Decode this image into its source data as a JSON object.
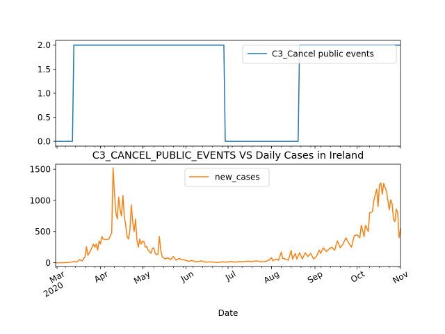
{
  "chart_data": [
    {
      "type": "line",
      "title": "",
      "xlabel": "",
      "ylabel": "",
      "ylim": [
        -0.1,
        2.1
      ],
      "y_ticks": [
        "0.0",
        "0.5",
        "1.0",
        "1.5",
        "2.0"
      ],
      "y_tick_values": [
        0,
        0.5,
        1.0,
        1.5,
        2.0
      ],
      "legend_position": "top-right",
      "series": [
        {
          "name": "C3_Cancel public events",
          "color": "#1f77b4",
          "points": [
            [
              "2020-02-29",
              0
            ],
            [
              "2020-03-12",
              0
            ],
            [
              "2020-03-13",
              2
            ],
            [
              "2020-06-28",
              2
            ],
            [
              "2020-06-29",
              0
            ],
            [
              "2020-08-20",
              0
            ],
            [
              "2020-08-21",
              2
            ],
            [
              "2020-11-01",
              2
            ]
          ]
        }
      ]
    },
    {
      "type": "line",
      "title": "C3_CANCEL_PUBLIC_EVENTS VS Daily Cases in Ireland",
      "xlabel": "Date",
      "ylabel": "",
      "ylim": [
        -60,
        1580
      ],
      "y_ticks": [
        "0",
        "500",
        "1000",
        "1500"
      ],
      "y_tick_values": [
        0,
        500,
        1000,
        1500
      ],
      "x_ticks": [
        {
          "date": "2020-03-01",
          "label": "Mar",
          "sublabel": "2020"
        },
        {
          "date": "2020-04-01",
          "label": "Apr"
        },
        {
          "date": "2020-05-01",
          "label": "May"
        },
        {
          "date": "2020-06-01",
          "label": "Jun"
        },
        {
          "date": "2020-07-01",
          "label": "Jul"
        },
        {
          "date": "2020-08-01",
          "label": "Aug"
        },
        {
          "date": "2020-09-01",
          "label": "Sep"
        },
        {
          "date": "2020-10-01",
          "label": "Oct"
        },
        {
          "date": "2020-11-01",
          "label": "Nov"
        }
      ],
      "legend_position": "top-center",
      "series": [
        {
          "name": "new_cases",
          "color": "#ff7f0e",
          "points": [
            [
              "2020-02-29",
              0
            ],
            [
              "2020-03-05",
              0
            ],
            [
              "2020-03-10",
              5
            ],
            [
              "2020-03-13",
              20
            ],
            [
              "2020-03-15",
              10
            ],
            [
              "2020-03-17",
              50
            ],
            [
              "2020-03-19",
              30
            ],
            [
              "2020-03-21",
              100
            ],
            [
              "2020-03-22",
              260
            ],
            [
              "2020-03-23",
              120
            ],
            [
              "2020-03-25",
              200
            ],
            [
              "2020-03-27",
              300
            ],
            [
              "2020-03-28",
              250
            ],
            [
              "2020-03-29",
              300
            ],
            [
              "2020-03-30",
              200
            ],
            [
              "2020-03-31",
              350
            ],
            [
              "2020-04-01",
              300
            ],
            [
              "2020-04-02",
              420
            ],
            [
              "2020-04-03",
              380
            ],
            [
              "2020-04-05",
              370
            ],
            [
              "2020-04-07",
              380
            ],
            [
              "2020-04-09",
              480
            ],
            [
              "2020-04-10",
              1520
            ],
            [
              "2020-04-11",
              1100
            ],
            [
              "2020-04-12",
              800
            ],
            [
              "2020-04-13",
              700
            ],
            [
              "2020-04-14",
              1050
            ],
            [
              "2020-04-15",
              850
            ],
            [
              "2020-04-16",
              750
            ],
            [
              "2020-04-17",
              1080
            ],
            [
              "2020-04-18",
              750
            ],
            [
              "2020-04-19",
              600
            ],
            [
              "2020-04-20",
              420
            ],
            [
              "2020-04-21",
              380
            ],
            [
              "2020-04-22",
              520
            ],
            [
              "2020-04-23",
              930
            ],
            [
              "2020-04-24",
              650
            ],
            [
              "2020-04-25",
              500
            ],
            [
              "2020-04-26",
              700
            ],
            [
              "2020-04-27",
              370
            ],
            [
              "2020-04-28",
              250
            ],
            [
              "2020-04-29",
              380
            ],
            [
              "2020-04-30",
              300
            ],
            [
              "2020-05-01",
              350
            ],
            [
              "2020-05-02",
              340
            ],
            [
              "2020-05-03",
              250
            ],
            [
              "2020-05-04",
              260
            ],
            [
              "2020-05-05",
              200
            ],
            [
              "2020-05-06",
              180
            ],
            [
              "2020-05-07",
              150
            ],
            [
              "2020-05-08",
              230
            ],
            [
              "2020-05-09",
              240
            ],
            [
              "2020-05-10",
              150
            ],
            [
              "2020-05-11",
              130
            ],
            [
              "2020-05-12",
              140
            ],
            [
              "2020-05-13",
              420
            ],
            [
              "2020-05-14",
              200
            ],
            [
              "2020-05-15",
              100
            ],
            [
              "2020-05-17",
              60
            ],
            [
              "2020-05-19",
              80
            ],
            [
              "2020-05-21",
              50
            ],
            [
              "2020-05-23",
              100
            ],
            [
              "2020-05-25",
              40
            ],
            [
              "2020-05-27",
              70
            ],
            [
              "2020-05-29",
              50
            ],
            [
              "2020-06-01",
              40
            ],
            [
              "2020-06-03",
              20
            ],
            [
              "2020-06-05",
              40
            ],
            [
              "2020-06-07",
              20
            ],
            [
              "2020-06-09",
              15
            ],
            [
              "2020-06-12",
              30
            ],
            [
              "2020-06-15",
              10
            ],
            [
              "2020-06-18",
              15
            ],
            [
              "2020-06-21",
              10
            ],
            [
              "2020-06-24",
              5
            ],
            [
              "2020-06-27",
              15
            ],
            [
              "2020-06-30",
              10
            ],
            [
              "2020-07-03",
              20
            ],
            [
              "2020-07-06",
              10
            ],
            [
              "2020-07-09",
              20
            ],
            [
              "2020-07-12",
              15
            ],
            [
              "2020-07-15",
              25
            ],
            [
              "2020-07-18",
              20
            ],
            [
              "2020-07-21",
              30
            ],
            [
              "2020-07-24",
              20
            ],
            [
              "2020-07-27",
              15
            ],
            [
              "2020-07-30",
              40
            ],
            [
              "2020-08-01",
              80
            ],
            [
              "2020-08-02",
              30
            ],
            [
              "2020-08-04",
              60
            ],
            [
              "2020-08-06",
              40
            ],
            [
              "2020-08-08",
              170
            ],
            [
              "2020-08-09",
              70
            ],
            [
              "2020-08-11",
              60
            ],
            [
              "2020-08-13",
              40
            ],
            [
              "2020-08-15",
              200
            ],
            [
              "2020-08-16",
              60
            ],
            [
              "2020-08-18",
              150
            ],
            [
              "2020-08-19",
              60
            ],
            [
              "2020-08-21",
              160
            ],
            [
              "2020-08-23",
              60
            ],
            [
              "2020-08-25",
              160
            ],
            [
              "2020-08-27",
              100
            ],
            [
              "2020-08-29",
              150
            ],
            [
              "2020-08-31",
              60
            ],
            [
              "2020-09-02",
              100
            ],
            [
              "2020-09-04",
              200
            ],
            [
              "2020-09-05",
              150
            ],
            [
              "2020-09-07",
              240
            ],
            [
              "2020-09-09",
              180
            ],
            [
              "2020-09-11",
              220
            ],
            [
              "2020-09-13",
              250
            ],
            [
              "2020-09-15",
              200
            ],
            [
              "2020-09-17",
              350
            ],
            [
              "2020-09-19",
              240
            ],
            [
              "2020-09-21",
              300
            ],
            [
              "2020-09-23",
              400
            ],
            [
              "2020-09-25",
              320
            ],
            [
              "2020-09-27",
              250
            ],
            [
              "2020-09-29",
              430
            ],
            [
              "2020-10-01",
              450
            ],
            [
              "2020-10-03",
              400
            ],
            [
              "2020-10-04",
              600
            ],
            [
              "2020-10-05",
              520
            ],
            [
              "2020-10-06",
              420
            ],
            [
              "2020-10-07",
              600
            ],
            [
              "2020-10-09",
              500
            ],
            [
              "2020-10-10",
              800
            ],
            [
              "2020-10-12",
              820
            ],
            [
              "2020-10-13",
              1000
            ],
            [
              "2020-10-15",
              1180
            ],
            [
              "2020-10-16",
              900
            ],
            [
              "2020-10-17",
              1250
            ],
            [
              "2020-10-18",
              1280
            ],
            [
              "2020-10-19",
              1100
            ],
            [
              "2020-10-20",
              1270
            ],
            [
              "2020-10-22",
              1150
            ],
            [
              "2020-10-23",
              1000
            ],
            [
              "2020-10-24",
              850
            ],
            [
              "2020-10-25",
              1010
            ],
            [
              "2020-10-26",
              950
            ],
            [
              "2020-10-27",
              700
            ],
            [
              "2020-10-28",
              660
            ],
            [
              "2020-10-29",
              860
            ],
            [
              "2020-10-30",
              800
            ],
            [
              "2020-10-31",
              400
            ],
            [
              "2020-11-01",
              550
            ]
          ]
        }
      ]
    }
  ]
}
